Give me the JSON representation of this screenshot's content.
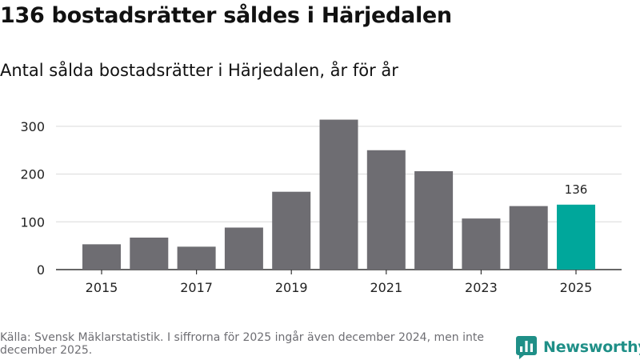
{
  "header": {
    "title": "136 bostadsrätter såldes i Härjedalen",
    "subtitle": "Antal sålda bostadsrätter i Härjedalen, år för år"
  },
  "chart_data": {
    "type": "bar",
    "categories": [
      "2015",
      "2016",
      "2017",
      "2018",
      "2019",
      "2020",
      "2021",
      "2022",
      "2023",
      "2024",
      "2025"
    ],
    "values": [
      53,
      67,
      48,
      88,
      163,
      314,
      250,
      206,
      107,
      133,
      136
    ],
    "x_tick_labels": [
      "2015",
      "2017",
      "2019",
      "2021",
      "2023",
      "2025"
    ],
    "y_ticks": [
      0,
      100,
      200,
      300
    ],
    "ylim": [
      0,
      330
    ],
    "highlight_category": "2025",
    "highlight_label": "136",
    "colors": {
      "bar": "#6e6d72",
      "highlight": "#00a79b",
      "grid": "#d9d9d9",
      "axis": "#333333"
    },
    "title": "Antal sålda bostadsrätter i Härjedalen, år för år",
    "xlabel": "",
    "ylabel": "",
    "grid": "horizontal"
  },
  "footer": {
    "source": "Källa: Svensk Mäklarstatistik. I siffrorna för 2025 ingår även december 2024, men inte december 2025."
  },
  "brand": {
    "name": "Newsworthy",
    "logo_icon": "bar-chart-bubble-icon",
    "color": "#1f8f87"
  }
}
